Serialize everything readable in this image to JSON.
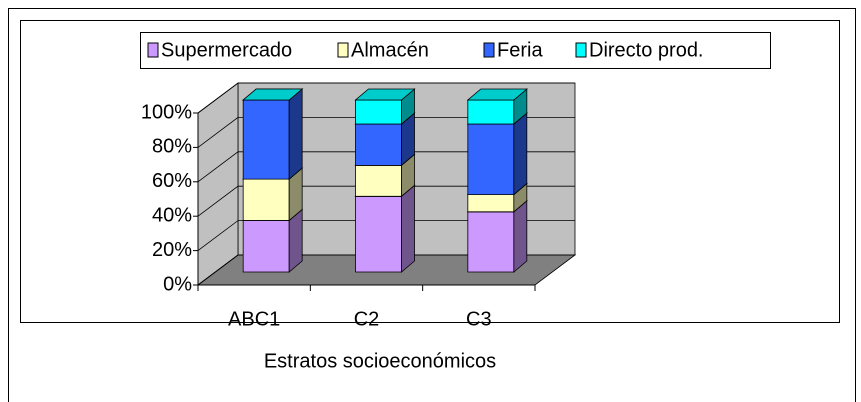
{
  "chart_data": {
    "type": "bar3d_stacked",
    "categories": [
      "ABC1",
      "C2",
      "C3"
    ],
    "series": [
      {
        "name": "Supermercado",
        "color": "#cc99ff",
        "values": [
          30,
          44,
          35
        ]
      },
      {
        "name": "Almacén",
        "color": "#ffffc0",
        "values": [
          24,
          18,
          10
        ]
      },
      {
        "name": "Feria",
        "color": "#3366ff",
        "values": [
          46,
          24,
          41
        ]
      },
      {
        "name": "Directo prod.",
        "color": "#00ffff",
        "values": [
          0,
          14,
          14
        ]
      }
    ],
    "ylim": [
      0,
      100
    ],
    "yticks": [
      {
        "value": 0,
        "label": "0%"
      },
      {
        "value": 20,
        "label": "20%"
      },
      {
        "value": 40,
        "label": "40%"
      },
      {
        "value": 60,
        "label": "60%"
      },
      {
        "value": 80,
        "label": "80%"
      },
      {
        "value": 100,
        "label": "100%"
      }
    ],
    "x_label": "Estratos socioeconómicos",
    "grid": true,
    "legend": "top"
  }
}
